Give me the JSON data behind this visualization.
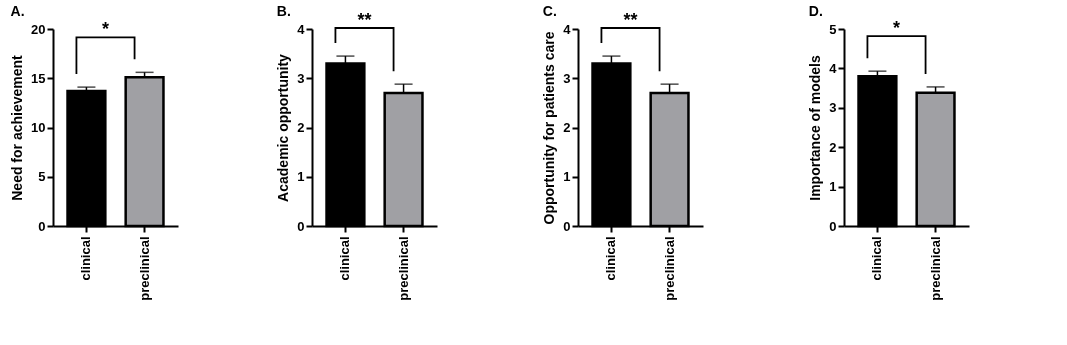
{
  "chart_data": [
    {
      "type": "bar",
      "title": "A.",
      "ylabel": "Need for achievement",
      "categories": [
        "clinical",
        "preclinical"
      ],
      "values": [
        13.7,
        15.1
      ],
      "colors": [
        "#000000",
        "#a0a0a4"
      ],
      "errors": [
        [
          13.7,
          14.1
        ],
        [
          15.1,
          15.6
        ]
      ],
      "ylim": [
        0,
        20
      ],
      "yticks": [
        0,
        5,
        10,
        15,
        20
      ],
      "annotations": [
        "*"
      ]
    },
    {
      "type": "bar",
      "title": "B.",
      "ylabel": "Academic opportunity",
      "categories": [
        "clinical",
        "preclinical"
      ],
      "values": [
        3.3,
        2.7
      ],
      "colors": [
        "#000000",
        "#a0a0a4"
      ],
      "errors": [
        [
          3.3,
          3.45
        ],
        [
          2.7,
          2.88
        ]
      ],
      "ylim": [
        0,
        4
      ],
      "yticks": [
        0,
        1,
        2,
        3,
        4
      ],
      "annotations": [
        "**"
      ]
    },
    {
      "type": "bar",
      "title": "C.",
      "ylabel": "Opportunity for patients care",
      "categories": [
        "clinical",
        "preclinical"
      ],
      "values": [
        3.3,
        2.7
      ],
      "colors": [
        "#000000",
        "#a0a0a4"
      ],
      "errors": [
        [
          3.3,
          3.45
        ],
        [
          2.7,
          2.88
        ]
      ],
      "ylim": [
        0,
        4
      ],
      "yticks": [
        0,
        1,
        2,
        3,
        4
      ],
      "annotations": [
        "**"
      ]
    },
    {
      "type": "bar",
      "title": "D.",
      "ylabel": "Importance of models",
      "categories": [
        "clinical",
        "preclinical"
      ],
      "values": [
        3.8,
        3.38
      ],
      "colors": [
        "#000000",
        "#a0a0a4"
      ],
      "errors": [
        [
          3.8,
          3.93
        ],
        [
          3.38,
          3.53
        ]
      ],
      "ylim": [
        0,
        5
      ],
      "yticks": [
        0,
        1,
        2,
        3,
        4,
        5
      ],
      "annotations": [
        "*"
      ]
    }
  ]
}
